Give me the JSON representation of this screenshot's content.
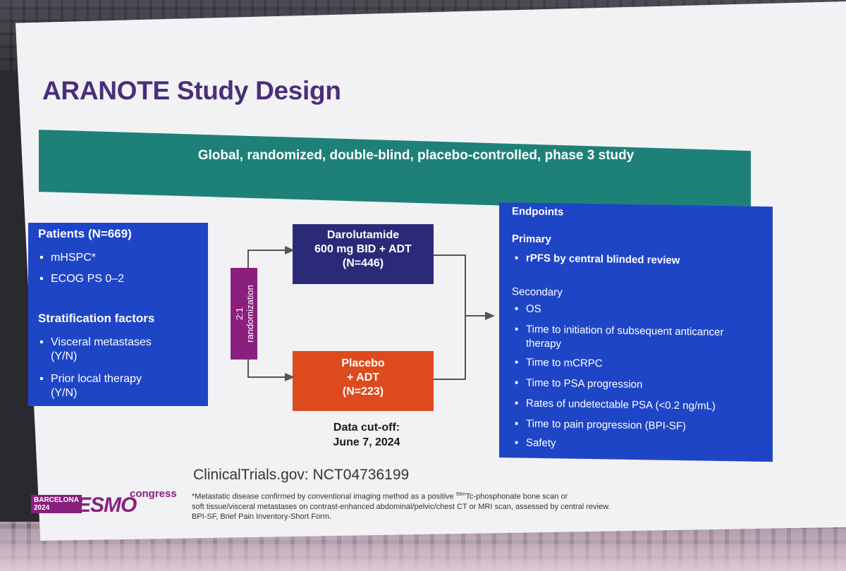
{
  "slide": {
    "title": "ARANOTE Study Design",
    "banner": "Global, randomized, double-blind, placebo-controlled, phase 3 study"
  },
  "patients": {
    "heading": "Patients (N=669)",
    "items": [
      "mHSPC*",
      "ECOG PS 0–2"
    ],
    "strat_heading": "Stratification factors",
    "strat_items": [
      [
        "Visceral metastases",
        "(Y/N)"
      ],
      [
        "Prior local therapy",
        "(Y/N)"
      ]
    ]
  },
  "randomization": {
    "ratio": "2:1",
    "label": "randomization"
  },
  "arms": {
    "drug": [
      "Darolutamide",
      "600 mg BID + ADT",
      "(N=446)"
    ],
    "placebo": [
      "Placebo",
      "+ ADT",
      "(N=223)"
    ]
  },
  "cutoff": [
    "Data cut-off:",
    "June 7, 2024"
  ],
  "endpoints": {
    "heading": "Endpoints",
    "primary_heading": "Primary",
    "primary_items": [
      "rPFS by central blinded review"
    ],
    "secondary_heading": "Secondary",
    "secondary_items": [
      [
        "OS"
      ],
      [
        "Time to initiation of subsequent anticancer",
        "therapy"
      ],
      [
        "Time to mCRPC"
      ],
      [
        "Time to PSA progression"
      ],
      [
        "Rates of undetectable PSA (<0.2 ng/mL)"
      ],
      [
        "Time to pain progression (BPI-SF)"
      ],
      [
        "Safety"
      ]
    ]
  },
  "clinicaltrials": "ClinicalTrials.gov: NCT04736199",
  "footnote": {
    "line1_pre": "*Metastatic disease confirmed by conventional imaging method as a positive ",
    "line1_sup": "99m",
    "line1_post": "Tc-phosphonate bone scan or",
    "line2": "soft tissue/visceral metastases on contrast-enhanced abdominal/pelvic/chest CT or MRI scan, assessed by central review.",
    "line3": "BPI-SF, Brief Pain Inventory-Short Form."
  },
  "logo": {
    "city": "BARCELONA",
    "year": "2024",
    "brand": "ESMO",
    "suffix": "congress"
  },
  "colors": {
    "title": "#4a2e7a",
    "banner": "#1e8178",
    "blue_box": "#1f45c7",
    "drug_box": "#2b2a78",
    "placebo_box": "#dd4a1e",
    "randomization": "#8a1f7e"
  },
  "icons": {
    "bullet": "square-bullet-icon",
    "arrow": "arrow-right-icon"
  }
}
